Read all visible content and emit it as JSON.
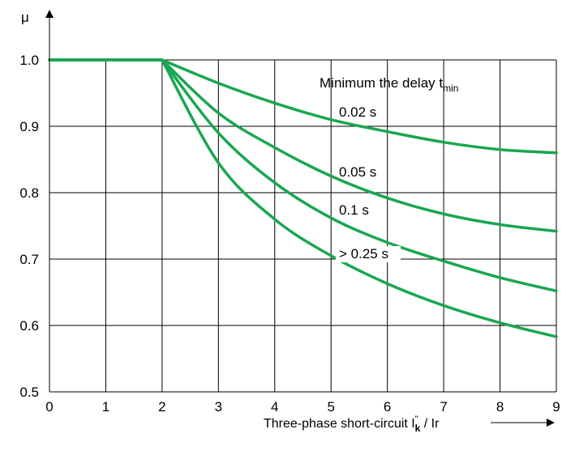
{
  "chart_data": {
    "type": "line",
    "title": "",
    "ylabel": "μ",
    "xlabel": {
      "prefix": "Three-phase short-circuit I",
      "sup": "\"",
      "sub": "k",
      "suffix": " / Ir"
    },
    "xlim": [
      0,
      9
    ],
    "ylim": [
      0.5,
      1.0
    ],
    "x_ticks": [
      "0",
      "1",
      "2",
      "3",
      "4",
      "5",
      "6",
      "7",
      "8",
      "9"
    ],
    "y_ticks": [
      "0.5",
      "0.6",
      "0.7",
      "0.8",
      "0.9",
      "1.0"
    ],
    "grid": true,
    "line_color": "#1aa651",
    "legend_title": {
      "main": "Minimum the delay t",
      "sub": "min"
    },
    "series": [
      {
        "name": "0.02 s",
        "x": [
          0,
          2,
          3,
          4,
          5,
          6,
          7,
          8,
          9
        ],
        "y": [
          1.0,
          1.0,
          0.965,
          0.935,
          0.91,
          0.892,
          0.876,
          0.865,
          0.86
        ]
      },
      {
        "name": "0.05 s",
        "x": [
          0,
          2,
          3,
          4,
          5,
          6,
          7,
          8,
          9
        ],
        "y": [
          1.0,
          1.0,
          0.92,
          0.868,
          0.825,
          0.792,
          0.768,
          0.752,
          0.742
        ]
      },
      {
        "name": "0.1 s",
        "x": [
          0,
          2,
          3,
          4,
          5,
          6,
          7,
          8,
          9
        ],
        "y": [
          1.0,
          1.0,
          0.89,
          0.815,
          0.762,
          0.725,
          0.697,
          0.672,
          0.652
        ]
      },
      {
        "name": "> 0.25 s",
        "x": [
          0,
          2,
          3,
          4,
          5,
          6,
          7,
          8,
          9
        ],
        "y": [
          1.0,
          1.0,
          0.845,
          0.76,
          0.705,
          0.663,
          0.63,
          0.604,
          0.583
        ]
      }
    ]
  }
}
